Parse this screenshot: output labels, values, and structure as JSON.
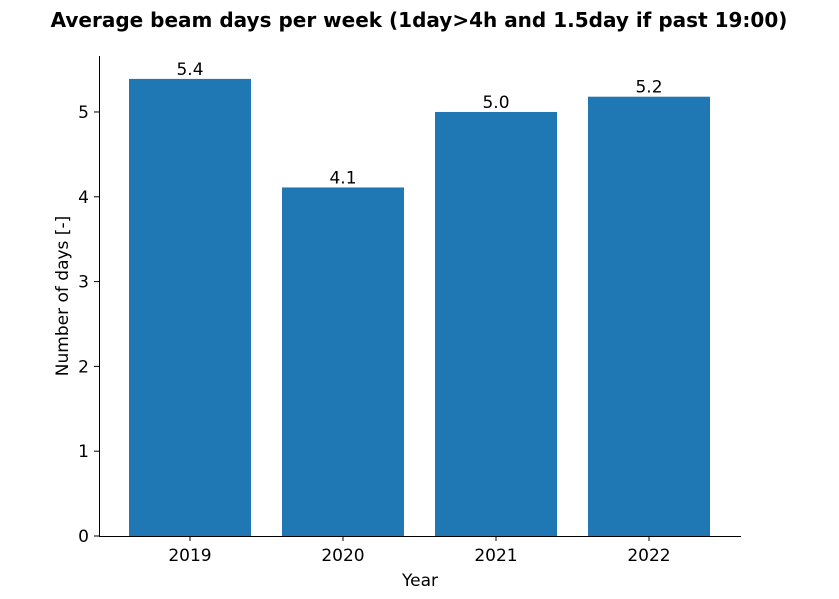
{
  "chart_data": {
    "type": "bar",
    "title": "Average beam days per week (1day>4h and 1.5day if past 19:00)",
    "xlabel": "Year",
    "ylabel": "Number of days [-]",
    "categories": [
      "2019",
      "2020",
      "2021",
      "2022"
    ],
    "values": [
      5.39,
      4.11,
      5.0,
      5.18
    ],
    "data_labels": [
      "5.4",
      "4.1",
      "5.0",
      "5.2"
    ],
    "ylim": [
      0,
      5.66
    ],
    "yticks": [
      0,
      1,
      2,
      3,
      4,
      5
    ],
    "ytick_labels": [
      "0",
      "1",
      "2",
      "3",
      "4",
      "5"
    ],
    "grid": false,
    "legend": "none",
    "bar_color": "#1f77b4"
  }
}
